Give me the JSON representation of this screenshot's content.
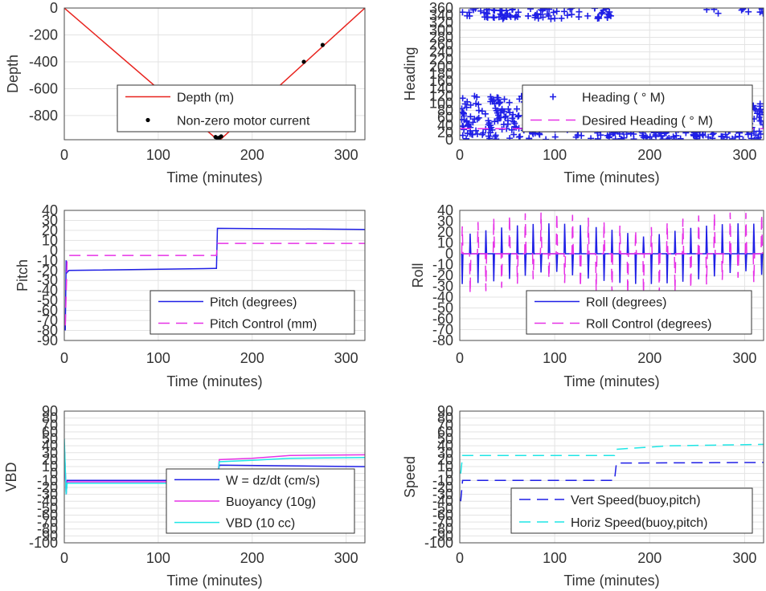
{
  "chart_data": [
    {
      "id": "depth",
      "type": "line",
      "xlabel": "Time (minutes)",
      "ylabel": "Depth",
      "xlim": [
        0,
        320
      ],
      "ylim": [
        -980,
        0
      ],
      "xticks": [
        0,
        100,
        200,
        300
      ],
      "yticks": [
        0,
        -200,
        -400,
        -600,
        -800
      ],
      "grid": true,
      "legend_position": "bottom-right",
      "series": [
        {
          "name": "Depth (m)",
          "style": "line",
          "color": "#e8231e",
          "x": [
            0,
            163,
            166,
            320
          ],
          "y": [
            0,
            -980,
            -980,
            0
          ]
        },
        {
          "name": "Non-zero motor current",
          "style": "dot",
          "color": "#000000",
          "x": [
            161,
            163,
            165,
            167,
            255,
            275
          ],
          "y": [
            -960,
            -968,
            -965,
            -955,
            -400,
            -275
          ]
        }
      ]
    },
    {
      "id": "heading",
      "type": "scatter",
      "xlabel": "Time (minutes)",
      "ylabel": "Heading",
      "xlim": [
        0,
        320
      ],
      "ylim": [
        0,
        360
      ],
      "xticks": [
        0,
        100,
        200,
        300
      ],
      "yticks": [
        0,
        20,
        40,
        60,
        80,
        100,
        120,
        140,
        160,
        180,
        200,
        220,
        240,
        260,
        280,
        300,
        320,
        340,
        360
      ],
      "grid": true,
      "legend_position": "bottom-right",
      "series": [
        {
          "name": "Heading (° M)",
          "legend_label": "Heading (  ° M)",
          "style": "plus",
          "color": "#1f1fe6",
          "note": "dense plus markers near 0-140 and 320-360"
        },
        {
          "name": "Desired Heading (° M)",
          "legend_label": "Desired Heading (  ° M)",
          "style": "dashed",
          "color": "#e632e6",
          "x": [
            0,
            320
          ],
          "y": [
            30,
            30
          ]
        }
      ]
    },
    {
      "id": "pitch",
      "type": "line",
      "xlabel": "Time (minutes)",
      "ylabel": "Pitch",
      "xlim": [
        0,
        320
      ],
      "ylim": [
        -90,
        40
      ],
      "xticks": [
        0,
        100,
        200,
        300
      ],
      "yticks": [
        40,
        30,
        20,
        10,
        0,
        -10,
        -20,
        -30,
        -40,
        -50,
        -60,
        -70,
        -80,
        -90
      ],
      "grid": true,
      "legend_position": "bottom-right",
      "series": [
        {
          "name": "Pitch (degrees)",
          "style": "line",
          "color": "#1f1fe6",
          "x": [
            1,
            2,
            3,
            5,
            160,
            162,
            163,
            320
          ],
          "y": [
            -80,
            -10,
            -22,
            -20,
            -18,
            -18,
            22,
            21
          ]
        },
        {
          "name": "Pitch Control (mm)",
          "style": "dashed",
          "color": "#e632e6",
          "x": [
            1,
            3,
            5,
            160,
            162,
            163,
            320
          ],
          "y": [
            -75,
            -10,
            -5,
            -5,
            -5,
            7,
            7
          ]
        }
      ]
    },
    {
      "id": "roll",
      "type": "line",
      "xlabel": "Time (minutes)",
      "ylabel": "Roll",
      "xlim": [
        0,
        320
      ],
      "ylim": [
        -80,
        40
      ],
      "xticks": [
        0,
        100,
        200,
        300
      ],
      "yticks": [
        40,
        30,
        20,
        10,
        0,
        -10,
        -20,
        -30,
        -40,
        -50,
        -60,
        -70,
        -80
      ],
      "grid": true,
      "legend_position": "bottom-right",
      "series": [
        {
          "name": "Roll (degrees)",
          "style": "line",
          "color": "#1f1fe6",
          "note": "oscillating spikes between about -30 and 30"
        },
        {
          "name": "Roll Control (degrees)",
          "style": "dashed",
          "color": "#e632e6",
          "note": "oscillating between about -40 and 40"
        }
      ]
    },
    {
      "id": "vbd",
      "type": "line",
      "xlabel": "Time (minutes)",
      "ylabel": "VBD",
      "xlim": [
        0,
        320
      ],
      "ylim": [
        -100,
        90
      ],
      "xticks": [
        0,
        100,
        200,
        300
      ],
      "yticks": [
        90,
        80,
        70,
        60,
        50,
        40,
        30,
        20,
        10,
        0,
        -10,
        -20,
        -30,
        -40,
        -50,
        -60,
        -70,
        -80,
        -90,
        -100
      ],
      "grid": true,
      "legend_position": "bottom-right",
      "series": [
        {
          "name": "W = dz/dt (cm/s)",
          "style": "line",
          "color": "#1f1fe6",
          "x": [
            0,
            2,
            3,
            160,
            163,
            165,
            320
          ],
          "y": [
            40,
            -30,
            -10,
            -10,
            -10,
            12,
            10
          ]
        },
        {
          "name": "Buoyancy (10g)",
          "style": "line",
          "color": "#e632e6",
          "x": [
            0,
            2,
            3,
            160,
            163,
            165,
            200,
            240,
            320
          ],
          "y": [
            40,
            -30,
            -12,
            -12,
            -12,
            20,
            22,
            26,
            27
          ]
        },
        {
          "name": "VBD (10 cc)",
          "style": "line",
          "color": "#1fe6e6",
          "x": [
            0,
            2,
            3,
            160,
            163,
            165,
            200,
            240,
            320
          ],
          "y": [
            50,
            -30,
            -14,
            -14,
            -14,
            17,
            19,
            22,
            23
          ]
        }
      ]
    },
    {
      "id": "speed",
      "type": "line",
      "xlabel": "Time (minutes)",
      "ylabel": "Speed",
      "xlim": [
        0,
        320
      ],
      "ylim": [
        -100,
        90
      ],
      "xticks": [
        0,
        100,
        200,
        300
      ],
      "yticks": [
        90,
        80,
        70,
        60,
        50,
        40,
        30,
        20,
        10,
        0,
        -10,
        -20,
        -30,
        -40,
        -50,
        -60,
        -70,
        -80,
        -90,
        -100
      ],
      "grid": true,
      "legend_position": "bottom-right",
      "series": [
        {
          "name": "Vert Speed(buoy,pitch)",
          "style": "dashed",
          "color": "#1f1fe6",
          "x": [
            1,
            3,
            5,
            160,
            163,
            165,
            320
          ],
          "y": [
            -40,
            -10,
            -10,
            -10,
            -10,
            15,
            16
          ]
        },
        {
          "name": "Horiz Speed(buoy,pitch)",
          "style": "dashed",
          "color": "#1fe6e6",
          "x": [
            1,
            3,
            5,
            160,
            163,
            165,
            220,
            320
          ],
          "y": [
            0,
            26,
            26,
            26,
            26,
            35,
            40,
            42
          ]
        }
      ]
    }
  ]
}
